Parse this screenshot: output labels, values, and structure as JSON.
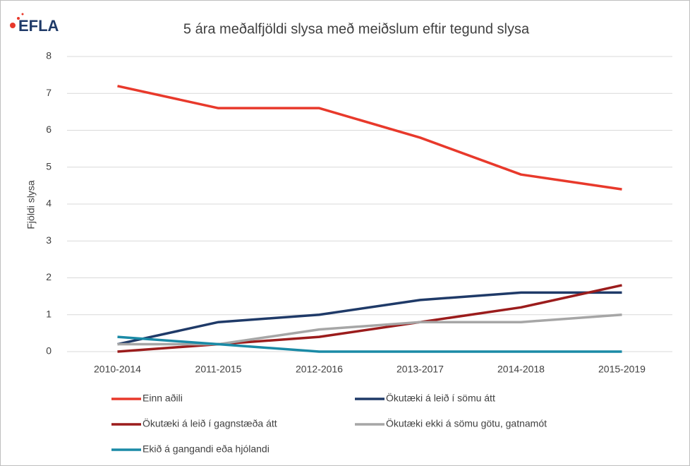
{
  "logo": "EFLA",
  "chart_data": {
    "type": "line",
    "title": "5 ára meðalfjöldi slysa með meiðslum eftir tegund slysa",
    "ylabel": "Fjöldi slysa",
    "categories": [
      "2010-2014",
      "2011-2015",
      "2012-2016",
      "2013-2017",
      "2014-2018",
      "2015-2019"
    ],
    "series": [
      {
        "name": "Einn aðili",
        "color": "#e8392b",
        "values": [
          7.2,
          6.6,
          6.6,
          5.8,
          4.8,
          4.4
        ]
      },
      {
        "name": "Ökutæki á leið í sömu átt",
        "color": "#1f3a68",
        "values": [
          0.2,
          0.8,
          1.0,
          1.4,
          1.6,
          1.6
        ]
      },
      {
        "name": "Ökutæki á leið í gagnstæða átt",
        "color": "#9b1c1c",
        "values": [
          0,
          0.2,
          0.4,
          0.8,
          1.2,
          1.8
        ]
      },
      {
        "name": "Ökutæki ekki á sömu götu, gatnamót",
        "color": "#a6a6a6",
        "values": [
          0.2,
          0.2,
          0.6,
          0.8,
          0.8,
          1.0
        ]
      },
      {
        "name": "Ekið á  gangandi eða hjólandi",
        "color": "#1a8aa6",
        "values": [
          0.4,
          0.2,
          0,
          0,
          0,
          0
        ]
      }
    ],
    "ylim": [
      0,
      8
    ],
    "yticks": [
      0,
      1,
      2,
      3,
      4,
      5,
      6,
      7,
      8
    ],
    "grid": true
  }
}
